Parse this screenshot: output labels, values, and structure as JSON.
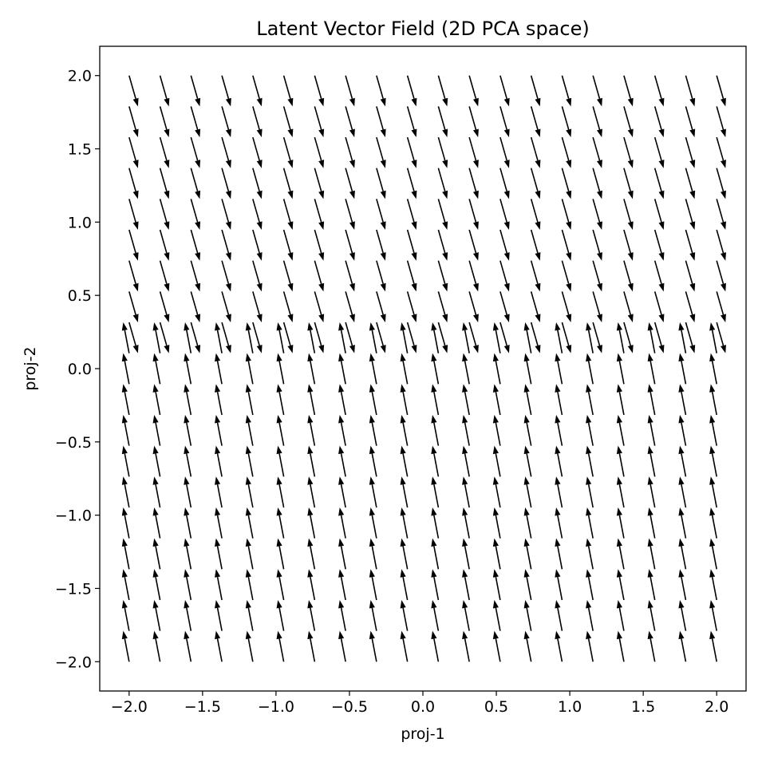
{
  "chart_data": {
    "type": "quiver",
    "title": "Latent Vector Field (2D PCA space)",
    "xlabel": "proj-1",
    "ylabel": "proj-2",
    "xlim": [
      -2.2,
      2.2
    ],
    "ylim": [
      -2.2,
      2.2
    ],
    "xticks": [
      -2.0,
      -1.5,
      -1.0,
      -0.5,
      0.0,
      0.5,
      1.0,
      1.5,
      2.0
    ],
    "xtick_labels": [
      "−2.0",
      "−1.5",
      "−1.0",
      "−0.5",
      "0.0",
      "0.5",
      "1.0",
      "1.5",
      "2.0"
    ],
    "yticks": [
      -2.0,
      -1.5,
      -1.0,
      -0.5,
      0.0,
      0.5,
      1.0,
      1.5,
      2.0
    ],
    "ytick_labels": [
      "−2.0",
      "−1.5",
      "−1.0",
      "−0.5",
      "0.0",
      "0.5",
      "1.0",
      "1.5",
      "2.0"
    ],
    "grid": false,
    "arrow_color": "#000000",
    "grid_points": {
      "x_range": [
        -2.0,
        2.0
      ],
      "y_range": [
        -2.0,
        2.0
      ],
      "count": 20
    },
    "vectors": {
      "upper_region": {
        "dx": 0.06,
        "dy": -0.21
      },
      "lower_region": {
        "dx": -0.04,
        "dy": 0.21
      },
      "boundary_near_y": 0.2
    }
  }
}
